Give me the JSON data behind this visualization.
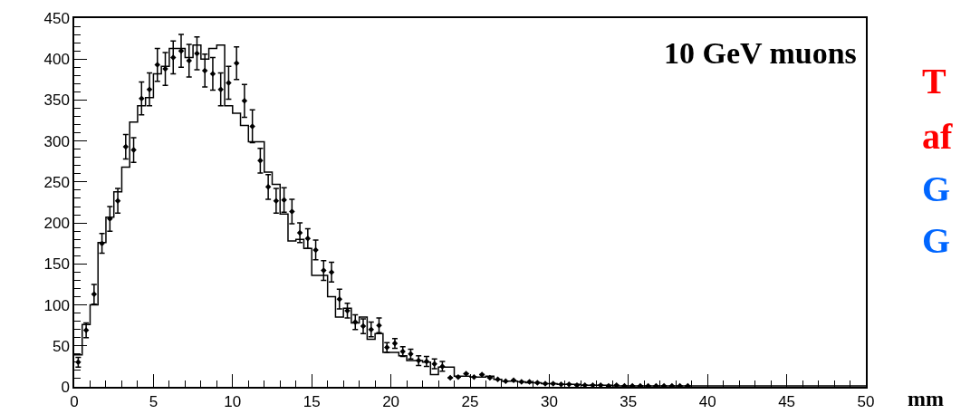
{
  "chart_data": {
    "type": "histogram",
    "title": "10 GeV muons",
    "xlabel": "mm",
    "annotations": [
      "T",
      "af",
      "G",
      "G"
    ],
    "bins": [
      0,
      0.5,
      1,
      1.5,
      2,
      2.5,
      3,
      3.5,
      4,
      4.5,
      5,
      5.5,
      6,
      6.5,
      7,
      7.5,
      8,
      8.5,
      9,
      9.5,
      10,
      10.5,
      11,
      11.5,
      12,
      12.5,
      13,
      13.5,
      14,
      14.5,
      15,
      15.5,
      16,
      16.5,
      17,
      17.5,
      18,
      18.5,
      19,
      19.5,
      20,
      20.5,
      21,
      21.5,
      22,
      22.5,
      23,
      23.5,
      24,
      24.5,
      25,
      25.5,
      26,
      26.5,
      27,
      27.5,
      28,
      28.5,
      29,
      29.5,
      30,
      30.5,
      31,
      31.5,
      32,
      32.5,
      33,
      33.5,
      34,
      34.5,
      35,
      35.5,
      36,
      36.5,
      37,
      37.5,
      38,
      38.5,
      39,
      39.5,
      40,
      40.5,
      41,
      41.5,
      42,
      42.5,
      43,
      43.5,
      44,
      44.5,
      45,
      45.5,
      46,
      46.5,
      47,
      47.5,
      48,
      48.5,
      49,
      49.5,
      50
    ],
    "values": [
      39,
      76,
      100,
      176,
      207,
      238,
      268,
      323,
      343,
      353,
      382,
      391,
      413,
      413,
      402,
      417,
      400,
      413,
      417,
      343,
      334,
      319,
      299,
      299,
      262,
      247,
      211,
      178,
      180,
      169,
      136,
      136,
      110,
      85,
      96,
      78,
      85,
      58,
      65,
      42,
      42,
      38,
      32,
      32,
      30,
      15,
      24,
      24,
      13,
      13,
      12,
      12,
      13,
      9,
      7,
      7,
      6,
      5,
      5,
      4,
      4,
      3,
      3,
      3,
      2,
      2,
      2,
      2,
      1,
      1,
      1,
      1,
      1,
      1,
      1,
      1,
      1,
      1,
      1,
      1,
      1,
      1,
      1,
      1,
      1,
      1,
      1,
      1,
      1,
      1,
      1,
      1,
      1,
      1,
      1,
      1,
      1,
      1,
      1,
      1
    ],
    "color": "#000000",
    "series": [
      {
        "type": "scatter",
        "color": "#000000",
        "marker": "diamond",
        "x": [
          0.25,
          0.75,
          1.25,
          1.75,
          2.25,
          2.75,
          3.25,
          3.75,
          4.25,
          4.75,
          5.25,
          5.75,
          6.25,
          6.75,
          7.25,
          7.75,
          8.25,
          8.75,
          9.25,
          9.75,
          10.25,
          10.75,
          11.25,
          11.75,
          12.25,
          12.75,
          13.25,
          13.75,
          14.25,
          14.75,
          15.25,
          15.75,
          16.25,
          16.75,
          17.25,
          17.75,
          18.25,
          18.75,
          19.25,
          19.75,
          20.25,
          20.75,
          21.25,
          21.75,
          22.25,
          22.75,
          23.25,
          23.75,
          24.25,
          24.75,
          25.25,
          25.75,
          26.25,
          26.75,
          27.25,
          27.75,
          28.25,
          28.75,
          29.25,
          29.75,
          30.25,
          30.75,
          31.25,
          31.75,
          32.25,
          32.75,
          33.25,
          33.75,
          34.25,
          34.75,
          35.25,
          35.75,
          36.25,
          36.75,
          37.25,
          37.75,
          38.25,
          38.75
        ],
        "values": [
          30,
          69,
          113,
          175,
          205,
          227,
          293,
          289,
          352,
          363,
          393,
          388,
          402,
          410,
          398,
          407,
          386,
          382,
          363,
          371,
          395,
          349,
          318,
          276,
          244,
          227,
          228,
          214,
          188,
          181,
          167,
          142,
          140,
          107,
          93,
          79,
          74,
          70,
          75,
          48,
          53,
          43,
          40,
          32,
          31,
          28,
          25,
          11,
          12,
          16,
          12,
          15,
          11,
          9,
          7,
          8,
          6,
          6,
          5,
          4,
          4,
          3,
          3,
          2,
          2,
          2,
          2,
          1,
          2,
          1,
          1,
          1,
          1,
          1,
          1,
          1,
          1,
          1
        ],
        "errors": [
          6,
          9,
          12,
          12,
          15,
          15,
          15,
          15,
          20,
          20,
          20,
          20,
          20,
          20,
          20,
          20,
          20,
          20,
          20,
          20,
          20,
          20,
          20,
          15,
          15,
          15,
          15,
          15,
          12,
          12,
          12,
          12,
          12,
          12,
          9,
          9,
          9,
          9,
          9,
          6,
          6,
          6,
          6,
          6,
          6,
          6,
          6,
          null,
          null,
          null,
          null,
          null,
          null,
          null,
          null,
          null,
          null,
          null,
          null,
          null,
          null,
          null,
          null,
          null,
          null,
          null,
          null,
          null,
          null,
          null,
          null,
          null,
          null,
          null,
          null,
          null,
          null,
          null
        ]
      }
    ],
    "xlim": [
      0,
      50
    ],
    "xticks": [
      0,
      5,
      10,
      15,
      20,
      25,
      30,
      35,
      40,
      45,
      50
    ],
    "ylim": [
      0,
      450
    ],
    "yticks": [
      0,
      50,
      100,
      150,
      200,
      250,
      300,
      350,
      400,
      450
    ]
  }
}
